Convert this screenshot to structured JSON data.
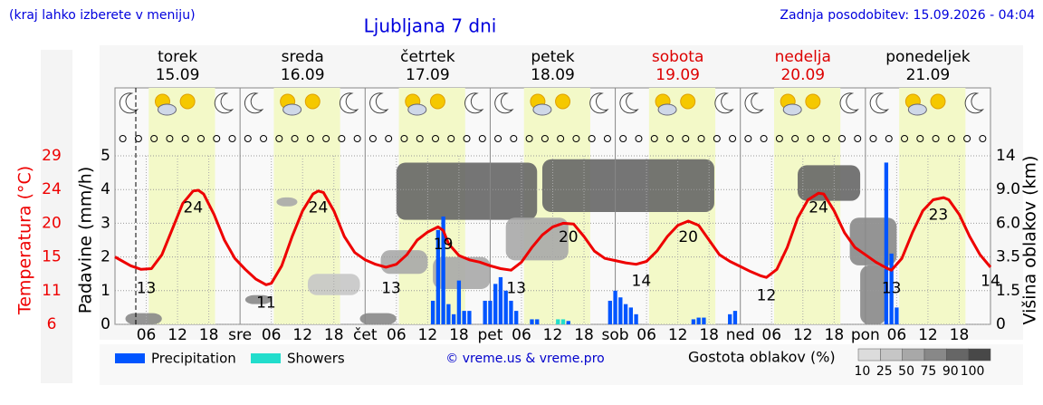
{
  "chart_data": {
    "type": "meteogram",
    "title": "Ljubljana 7 dni",
    "subtitle": "(kraj lahko izberete v meniju)",
    "updated": "Zadnja posodobitev: 15.09.2026 - 04:04",
    "credit": "© vreme.us & vreme.pro",
    "days": [
      {
        "name": "torek",
        "date": "15.09",
        "color": "#000000"
      },
      {
        "name": "sreda",
        "date": "16.09",
        "color": "#000000"
      },
      {
        "name": "četrtek",
        "date": "17.09",
        "color": "#000000"
      },
      {
        "name": "petek",
        "date": "18.09",
        "color": "#000000"
      },
      {
        "name": "sobota",
        "date": "19.09",
        "color": "#dd0000"
      },
      {
        "name": "nedelja",
        "date": "20.09",
        "color": "#dd0000"
      },
      {
        "name": "ponedeljek",
        "date": "21.09",
        "color": "#000000"
      }
    ],
    "xlim": [
      0,
      168
    ],
    "xticks": [
      {
        "value": 6,
        "label": "06"
      },
      {
        "value": 12,
        "label": "12"
      },
      {
        "value": 18,
        "label": "18"
      },
      {
        "value": 24,
        "label": "sre"
      },
      {
        "value": 30,
        "label": "06"
      },
      {
        "value": 36,
        "label": "12"
      },
      {
        "value": 42,
        "label": "18"
      },
      {
        "value": 48,
        "label": "čet"
      },
      {
        "value": 54,
        "label": "06"
      },
      {
        "value": 60,
        "label": "12"
      },
      {
        "value": 66,
        "label": "18"
      },
      {
        "value": 72,
        "label": "pet"
      },
      {
        "value": 78,
        "label": "06"
      },
      {
        "value": 84,
        "label": "12"
      },
      {
        "value": 90,
        "label": "18"
      },
      {
        "value": 96,
        "label": "sob"
      },
      {
        "value": 102,
        "label": "06"
      },
      {
        "value": 108,
        "label": "12"
      },
      {
        "value": 114,
        "label": "18"
      },
      {
        "value": 120,
        "label": "ned"
      },
      {
        "value": 126,
        "label": "06"
      },
      {
        "value": 132,
        "label": "12"
      },
      {
        "value": 138,
        "label": "18"
      },
      {
        "value": 144,
        "label": "pon"
      },
      {
        "value": 150,
        "label": "06"
      },
      {
        "value": 156,
        "label": "12"
      },
      {
        "value": 162,
        "label": "18"
      }
    ],
    "ylabel": "Padavine (mm/h)",
    "ylim": [
      0,
      5
    ],
    "yticks": [
      0,
      1,
      2,
      3,
      4,
      5
    ],
    "temp_label": "Temperatura (°C)",
    "temp_lim": [
      6,
      29
    ],
    "temp_ticks": [
      6,
      {
        "value": 10.6,
        "label": "11"
      },
      {
        "value": 15.2,
        "label": "15"
      },
      {
        "value": 19.8,
        "label": "20"
      },
      {
        "value": 24.4,
        "label": "24"
      },
      29
    ],
    "temp_color": "#ee0000",
    "y2label": "Višina oblakov (km)",
    "y2ticks": [
      0,
      1.5,
      3.5,
      {
        "value": 6,
        "label": "6.0"
      },
      {
        "value": 9,
        "label": "9.0"
      },
      14
    ],
    "grid": true,
    "temperature": {
      "hours": [
        0,
        3,
        5,
        7,
        9,
        11,
        13,
        15,
        16,
        17,
        19,
        21,
        23,
        25,
        27,
        29,
        30,
        32,
        34,
        36,
        38,
        39,
        40,
        42,
        44,
        46,
        48,
        50,
        52,
        54,
        56,
        58,
        60,
        62,
        63,
        64,
        66,
        68,
        70,
        72,
        74,
        76,
        78,
        80,
        82,
        84,
        86,
        88,
        90,
        92,
        94,
        96,
        98,
        100,
        102,
        104,
        106,
        108,
        110,
        112,
        114,
        116,
        118,
        120,
        122,
        124,
        125,
        127,
        129,
        131,
        133,
        135,
        136,
        138,
        140,
        142,
        144,
        146,
        148,
        149,
        151,
        153,
        155,
        157,
        159,
        160,
        162,
        164,
        166,
        168
      ],
      "values": [
        15.2,
        14.0,
        13.5,
        13.6,
        15.5,
        19,
        22.5,
        24.2,
        24.3,
        23.8,
        21,
        17.5,
        15,
        13.5,
        12.2,
        11.4,
        11.6,
        14,
        18,
        21.5,
        23.8,
        24.2,
        24,
        21.5,
        18,
        15.8,
        14.8,
        14.2,
        13.8,
        14.2,
        15.5,
        17.5,
        18.6,
        19.3,
        18.8,
        17,
        15.4,
        14.8,
        14.5,
        14,
        13.6,
        13.4,
        14.5,
        16.5,
        18.2,
        19.3,
        19.8,
        19.7,
        18,
        16,
        15,
        14.7,
        14.4,
        14.2,
        14.6,
        16,
        18,
        19.5,
        20.1,
        19.5,
        17.5,
        15.5,
        14.6,
        13.9,
        13.2,
        12.6,
        12.4,
        13.5,
        16.5,
        20.5,
        23,
        23.9,
        23.8,
        21.5,
        18.5,
        16.5,
        15.5,
        14.5,
        13.7,
        13.4,
        15,
        18.5,
        21.5,
        23,
        23.3,
        23,
        21,
        18,
        15.5,
        13.8
      ]
    },
    "temp_labels": {
      "hours": [
        6,
        15,
        29,
        39,
        53,
        63,
        77,
        87,
        101,
        110,
        125,
        135,
        149,
        158,
        168
      ],
      "values": [
        13,
        24,
        11,
        24,
        13,
        19,
        13,
        20,
        14,
        20,
        12,
        24,
        13,
        23,
        14
      ]
    },
    "series": [
      {
        "name": "Precipitation",
        "color": "#0055ff",
        "hours": [
          61,
          62,
          63,
          64,
          65,
          66,
          67,
          68,
          71,
          72,
          73,
          74,
          75,
          76,
          77,
          80,
          81,
          87,
          95,
          96,
          97,
          98,
          99,
          100,
          111,
          112,
          113,
          118,
          119,
          148,
          149,
          150
        ],
        "values": [
          0.7,
          2.8,
          3.2,
          0.6,
          0.3,
          1.3,
          0.4,
          0.4,
          0.7,
          0.7,
          1.2,
          1.4,
          1.0,
          0.7,
          0.4,
          0.15,
          0.15,
          0.1,
          0.7,
          1.0,
          0.8,
          0.6,
          0.5,
          0.3,
          0.15,
          0.2,
          0.2,
          0.3,
          0.4,
          4.8,
          2.1,
          0.5
        ]
      },
      {
        "name": "Showers",
        "color": "#22ddcc",
        "hours": [
          85,
          86
        ],
        "values": [
          0.15,
          0.15
        ]
      }
    ],
    "cloud_legend": "Gostota oblakov (%)",
    "cloud_levels": [
      10,
      25,
      50,
      75,
      90,
      100
    ],
    "cloud_colors": [
      "#dcdcdc",
      "#c6c6c6",
      "#a8a8a8",
      "#888888",
      "#666666",
      "#484848"
    ],
    "clouds": [
      {
        "start": 54,
        "end": 81,
        "bottom": 6.3,
        "top": 13,
        "density": 90
      },
      {
        "start": 82,
        "end": 115,
        "bottom": 7,
        "top": 13.5,
        "density": 90
      },
      {
        "start": 131,
        "end": 143,
        "bottom": 8,
        "top": 12.6,
        "density": 90
      },
      {
        "start": 31,
        "end": 35,
        "bottom": 7.5,
        "top": 8.3,
        "density": 50
      },
      {
        "start": 47,
        "end": 54,
        "bottom": 0,
        "top": 0.5,
        "density": 75
      },
      {
        "start": 2,
        "end": 9,
        "bottom": 0,
        "top": 0.5,
        "density": 75
      },
      {
        "start": 25,
        "end": 30,
        "bottom": 0.9,
        "top": 1.3,
        "density": 75
      },
      {
        "start": 37,
        "end": 47,
        "bottom": 1.3,
        "top": 2.5,
        "density": 25
      },
      {
        "start": 51,
        "end": 60,
        "bottom": 2.5,
        "top": 4,
        "density": 50
      },
      {
        "start": 61,
        "end": 72,
        "bottom": 1.6,
        "top": 3.5,
        "density": 50
      },
      {
        "start": 75,
        "end": 87,
        "bottom": 3.3,
        "top": 6.5,
        "density": 50
      },
      {
        "start": 141,
        "end": 150,
        "bottom": 3,
        "top": 6.5,
        "density": 75
      },
      {
        "start": 143,
        "end": 148,
        "bottom": 0,
        "top": 3,
        "density": 75
      }
    ]
  }
}
